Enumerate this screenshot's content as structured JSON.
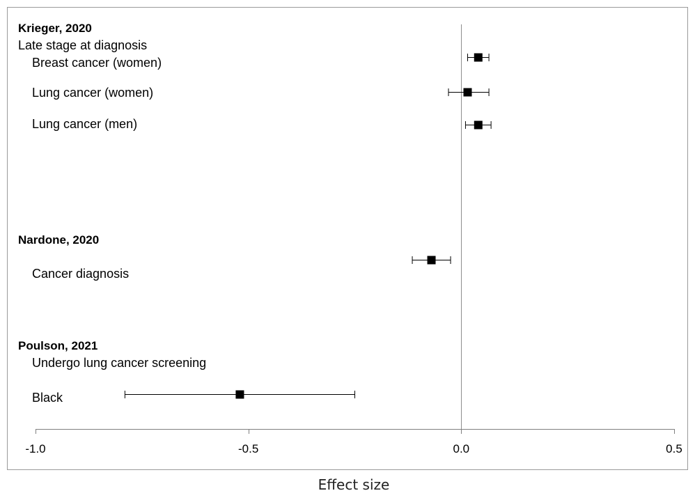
{
  "chart_data": {
    "type": "forest",
    "title": "",
    "xlabel": "Effect size",
    "xlim": [
      -1.0,
      0.5
    ],
    "xticks": [
      -1.0,
      -0.5,
      0.0,
      0.5
    ],
    "xtick_labels": [
      "-1.0",
      "-0.5",
      "0.0",
      "0.5"
    ],
    "reference_line": 0.0,
    "grid": false,
    "marker_color": "#000000",
    "rows": [
      {
        "kind": "group",
        "label": "Krieger, 2020"
      },
      {
        "kind": "subhead",
        "label": "Late stage at diagnosis"
      },
      {
        "kind": "item",
        "label": "Breast cancer (women)",
        "estimate": 0.04,
        "ci_low": 0.015,
        "ci_high": 0.065
      },
      {
        "kind": "item",
        "label": "Lung cancer (women)",
        "estimate": 0.015,
        "ci_low": -0.03,
        "ci_high": 0.065
      },
      {
        "kind": "item",
        "label": "Lung cancer (men)",
        "estimate": 0.04,
        "ci_low": 0.01,
        "ci_high": 0.07
      },
      {
        "kind": "group",
        "label": "Nardone, 2020"
      },
      {
        "kind": "item",
        "label": "Cancer diagnosis",
        "estimate": -0.07,
        "ci_low": -0.115,
        "ci_high": -0.025
      },
      {
        "kind": "group",
        "label": "Poulson, 2021"
      },
      {
        "kind": "subhead",
        "label": "Undergo lung cancer screening"
      },
      {
        "kind": "item",
        "label": "Black",
        "estimate": -0.52,
        "ci_low": -0.79,
        "ci_high": -0.25
      }
    ]
  }
}
